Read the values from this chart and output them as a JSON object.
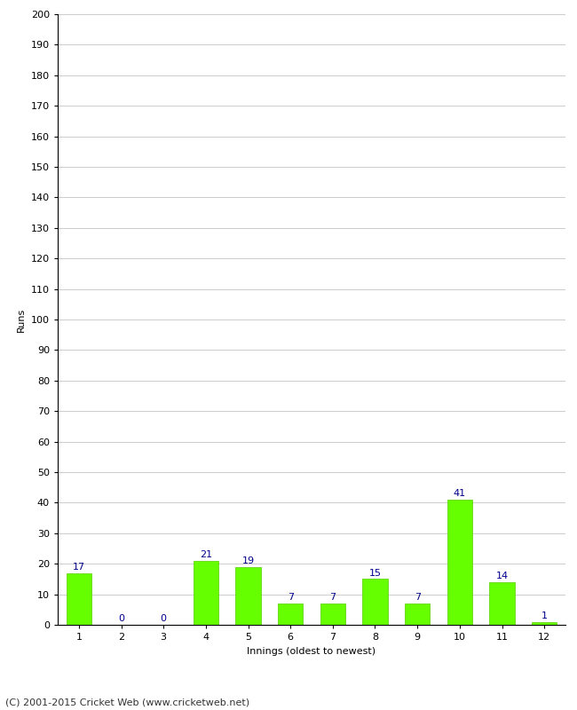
{
  "xlabel": "Innings (oldest to newest)",
  "ylabel": "Runs",
  "categories": [
    1,
    2,
    3,
    4,
    5,
    6,
    7,
    8,
    9,
    10,
    11,
    12
  ],
  "values": [
    17,
    0,
    0,
    21,
    19,
    7,
    7,
    15,
    7,
    41,
    14,
    1
  ],
  "bar_color": "#66ff00",
  "bar_edge_color": "#55cc00",
  "label_color": "#00008B",
  "ylim": [
    0,
    200
  ],
  "ytick_step": 10,
  "background_color": "#ffffff",
  "grid_color": "#cccccc",
  "footer_text": "(C) 2001-2015 Cricket Web (www.cricketweb.net)",
  "axis_label_fontsize": 8,
  "tick_fontsize": 8,
  "bar_label_fontsize": 8,
  "footer_fontsize": 8
}
